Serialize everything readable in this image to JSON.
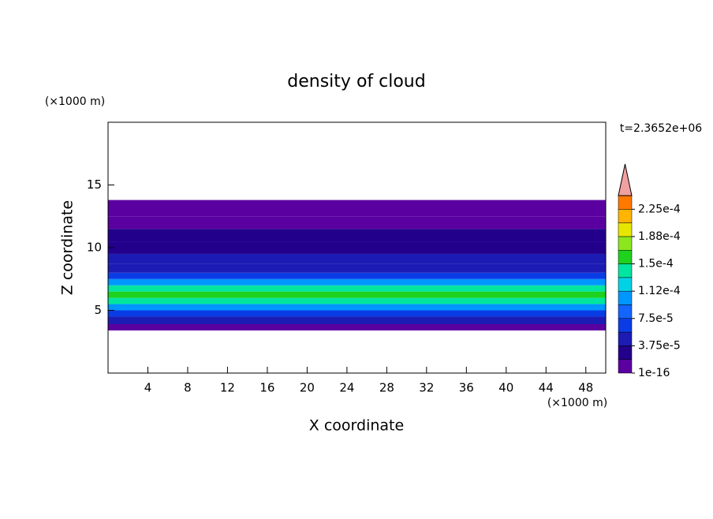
{
  "chart_data": {
    "type": "contour",
    "title": "density of cloud",
    "xlabel": "X coordinate",
    "ylabel": "Z coordinate",
    "xunit": "(×1000 m)",
    "yunit": "(×1000 m)",
    "time_label": "t=2.3652e+06",
    "xlim": [
      0,
      50
    ],
    "xticks": [
      4,
      8,
      12,
      16,
      20,
      24,
      28,
      32,
      36,
      40,
      44,
      48
    ],
    "ylim": [
      0,
      20
    ],
    "yticks": [
      5,
      10,
      15
    ],
    "profile": {
      "z_edges": [
        3.4,
        3.9,
        4.5,
        5,
        5.5,
        6,
        6.5,
        7,
        7.5,
        8,
        8.7,
        9.5,
        10.5,
        11.5,
        12.5,
        13.8
      ],
      "values": [
        1e-05,
        4e-05,
        6e-05,
        0.0001,
        0.00015,
        0.00016,
        0.00014,
        0.0001,
        7e-05,
        5e-05,
        4e-05,
        3e-05,
        2e-05,
        1e-05,
        5e-06
      ]
    },
    "colorbar": {
      "clim": [
        0,
        0.00024375
      ],
      "colors": [
        "#5a00a0",
        "#22008c",
        "#1c1cb4",
        "#0a3ce6",
        "#1464ff",
        "#0096ff",
        "#00d2e6",
        "#00e6a0",
        "#1ed21e",
        "#8ce61e",
        "#e6e600",
        "#ffb400",
        "#ff7800"
      ],
      "extend_color": "#f0a0a0",
      "ticks": [
        {
          "value": 1e-16,
          "label": "1e-16"
        },
        {
          "value": 3.75e-05,
          "label": "3.75e-5"
        },
        {
          "value": 7.5e-05,
          "label": "7.5e-5"
        },
        {
          "value": 0.0001125,
          "label": "1.12e-4"
        },
        {
          "value": 0.00015,
          "label": "1.5e-4"
        },
        {
          "value": 0.0001875,
          "label": "1.88e-4"
        },
        {
          "value": 0.000225,
          "label": "2.25e-4"
        }
      ]
    }
  }
}
